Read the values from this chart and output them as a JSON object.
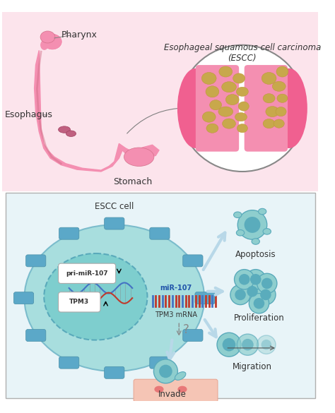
{
  "bg_top": "#fce4ec",
  "bg_bottom": "#f5f5f5",
  "title_escc": "Esophageal squamous cell carcinoma\n(ESCC)",
  "label_pharynx": "Pharynx",
  "label_esophagus": "Esophagus",
  "label_stomach": "Stomach",
  "label_escc_cell": "ESCC cell",
  "label_pri_mir": "pri-miR-107",
  "label_tpm3": "TPM3",
  "label_mir107": "miR-107",
  "label_tpm3_mrna": "TPM3 mRNA",
  "label_apoptosis": "Apoptosis",
  "label_proliferation": "Proliferation",
  "label_migration": "Migration",
  "label_invade": "Invade",
  "cell_color": "#7ececa",
  "cell_color_light": "#a8dede",
  "nucleus_color": "#5bb8c8",
  "nucleus_border": "#4a9fb5",
  "arrow_color": "#c8e6f0",
  "esophagus_color": "#f48fb1",
  "esophagus_dark": "#e91e8c",
  "tumor_color": "#c8a84b",
  "dna_color1": "#4472c4",
  "dna_color2": "#c0392b",
  "mrna_color1": "#c0392b",
  "mrna_color2": "#4472c4",
  "text_color": "#333333",
  "border_color": "#b0b0b0"
}
